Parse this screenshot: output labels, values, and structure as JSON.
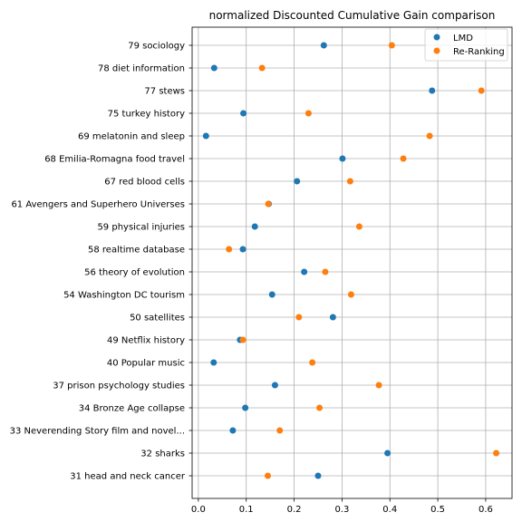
{
  "chart_data": {
    "type": "scatter",
    "title": "normalized Discounted Cumulative Gain comparison",
    "xlabel": "",
    "ylabel": "",
    "xlim": [
      -0.013,
      0.655
    ],
    "xticks": [
      "0.0",
      "0.1",
      "0.2",
      "0.3",
      "0.4",
      "0.5",
      "0.6"
    ],
    "grid": true,
    "legend_position": "top-right",
    "categories": [
      "79 sociology",
      "78 diet information",
      "77 stews",
      "75 turkey history",
      "69 melatonin and sleep",
      "68 Emilia-Romagna food travel",
      "67 red blood cells",
      "61 Avengers and Superhero Universes",
      "59 physical injuries",
      "58 realtime database",
      "56 theory of evolution",
      "54 Washington DC tourism",
      "50 satellites",
      "49 Netflix history",
      "40 Popular music",
      "37 prison psychology studies",
      "34 Bronze Age collapse",
      "33 Neverending Story film and novel...",
      "32 sharks",
      "31 head and neck cancer"
    ],
    "series": [
      {
        "name": "LMD",
        "color": "#1f77b4",
        "values": [
          0.262,
          0.033,
          0.488,
          0.094,
          0.016,
          0.301,
          0.206,
          0.147,
          0.118,
          0.093,
          0.221,
          0.154,
          0.281,
          0.087,
          0.032,
          0.16,
          0.098,
          0.072,
          0.395,
          0.25
        ]
      },
      {
        "name": "Re-Ranking",
        "color": "#ff7f0e",
        "values": [
          0.404,
          0.133,
          0.591,
          0.23,
          0.483,
          0.428,
          0.317,
          0.146,
          0.336,
          0.064,
          0.265,
          0.319,
          0.21,
          0.093,
          0.238,
          0.377,
          0.253,
          0.17,
          0.622,
          0.145
        ]
      }
    ]
  }
}
